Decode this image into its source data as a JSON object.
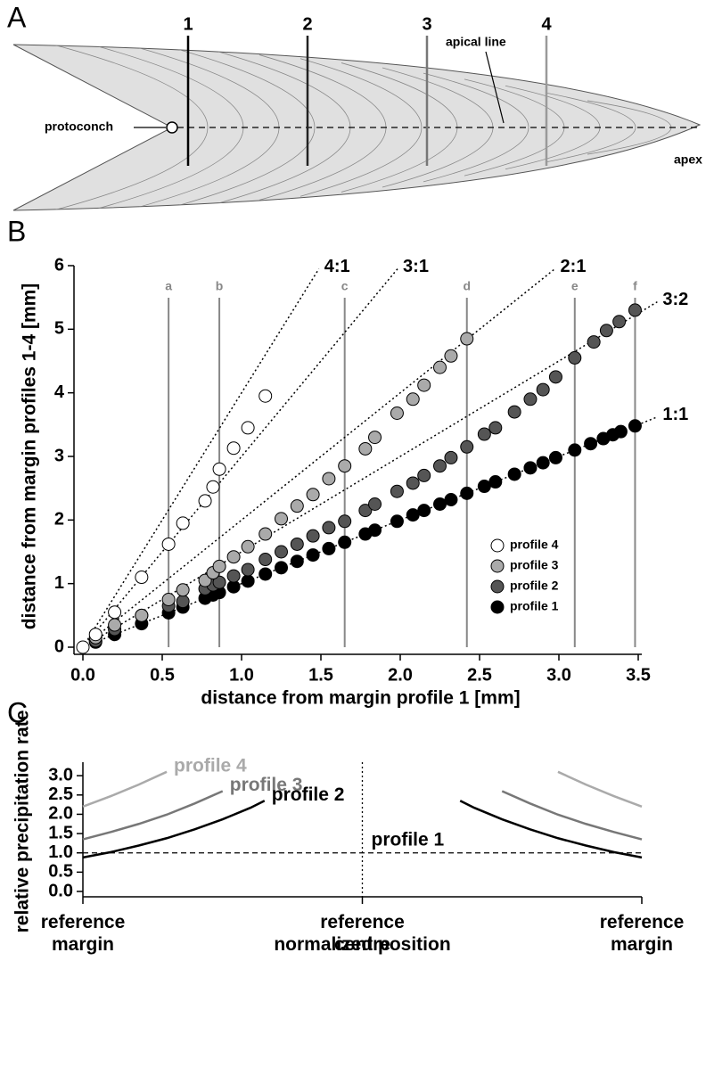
{
  "panel_a": {
    "letter": "A",
    "line_labels": [
      "1",
      "2",
      "3",
      "4"
    ],
    "protoconch": "protoconch",
    "apical_line": "apical line",
    "apex": "apex"
  },
  "chart_data": [
    {
      "type": "scatter",
      "panel": "B",
      "x_label": "distance from margin profile 1 [mm]",
      "y_label": "distance from margin profiles 1-4 [mm]",
      "xlim": [
        0,
        3.5
      ],
      "ylim": [
        0,
        6
      ],
      "xticks": [
        {
          "value": 0,
          "label": "0.0"
        },
        0.5,
        {
          "value": 1,
          "label": "1.0"
        },
        1.5,
        {
          "value": 2,
          "label": "2.0"
        },
        2.5,
        {
          "value": 3,
          "label": "3.0"
        },
        3.5
      ],
      "yticks": [
        0,
        1,
        2,
        3,
        4,
        5,
        6
      ],
      "legend": "lower right",
      "reference_lines": [
        {
          "label": "a",
          "x": 0.54
        },
        {
          "label": "b",
          "x": 0.86
        },
        {
          "label": "c",
          "x": 1.65
        },
        {
          "label": "d",
          "x": 2.42
        },
        {
          "label": "e",
          "x": 3.1
        },
        {
          "label": "f",
          "x": 3.48
        }
      ],
      "ratio_lines": [
        {
          "label": "4:1",
          "slope": 4
        },
        {
          "label": "3:1",
          "slope": 3
        },
        {
          "label": "2:1",
          "slope": 2
        },
        {
          "label": "3:2",
          "slope": 1.5
        },
        {
          "label": "1:1",
          "slope": 1
        }
      ],
      "series": [
        {
          "name": "profile 4",
          "color": "#ffffff",
          "x": [
            0,
            0.08,
            0.2,
            0.37,
            0.54,
            0.63,
            0.77,
            0.82,
            0.86,
            0.95,
            1.04,
            1.15
          ],
          "values": [
            0,
            0.2,
            0.55,
            1.1,
            1.62,
            1.95,
            2.3,
            2.52,
            2.8,
            3.13,
            3.45,
            3.95
          ]
        },
        {
          "name": "profile 3",
          "color": "#aaaaaa",
          "x": [
            0.08,
            0.2,
            0.37,
            0.54,
            0.63,
            0.77,
            0.82,
            0.86,
            0.95,
            1.04,
            1.15,
            1.25,
            1.35,
            1.45,
            1.55,
            1.65,
            1.78,
            1.84,
            1.98,
            2.08,
            2.15,
            2.25,
            2.32,
            2.42
          ],
          "values": [
            0.15,
            0.35,
            0.5,
            0.75,
            0.9,
            1.05,
            1.17,
            1.27,
            1.42,
            1.58,
            1.78,
            2.02,
            2.22,
            2.4,
            2.65,
            2.85,
            3.12,
            3.3,
            3.68,
            3.9,
            4.12,
            4.4,
            4.58,
            4.85
          ]
        },
        {
          "name": "profile 2",
          "color": "#555555",
          "x": [
            0.08,
            0.2,
            0.37,
            0.54,
            0.63,
            0.77,
            0.82,
            0.86,
            0.95,
            1.04,
            1.15,
            1.25,
            1.35,
            1.45,
            1.55,
            1.65,
            1.78,
            1.84,
            1.98,
            2.08,
            2.15,
            2.25,
            2.32,
            2.42,
            2.53,
            2.6,
            2.72,
            2.82,
            2.9,
            2.98,
            3.1,
            3.22,
            3.3,
            3.38,
            3.48
          ],
          "values": [
            0.1,
            0.28,
            0.5,
            0.65,
            0.72,
            0.92,
            0.98,
            1.02,
            1.12,
            1.22,
            1.38,
            1.5,
            1.62,
            1.75,
            1.88,
            1.98,
            2.15,
            2.25,
            2.45,
            2.58,
            2.7,
            2.85,
            2.98,
            3.15,
            3.35,
            3.45,
            3.7,
            3.9,
            4.05,
            4.25,
            4.55,
            4.8,
            4.98,
            5.12,
            5.3
          ]
        },
        {
          "name": "profile 1",
          "color": "#000000",
          "x": [
            0.08,
            0.2,
            0.37,
            0.54,
            0.63,
            0.77,
            0.82,
            0.86,
            0.95,
            1.04,
            1.15,
            1.25,
            1.35,
            1.45,
            1.55,
            1.65,
            1.78,
            1.84,
            1.98,
            2.08,
            2.15,
            2.25,
            2.32,
            2.42,
            2.53,
            2.6,
            2.72,
            2.82,
            2.9,
            2.98,
            3.1,
            3.2,
            3.28,
            3.34,
            3.39,
            3.48
          ],
          "values": [
            0.08,
            0.2,
            0.37,
            0.54,
            0.63,
            0.77,
            0.82,
            0.86,
            0.95,
            1.04,
            1.15,
            1.25,
            1.35,
            1.45,
            1.55,
            1.65,
            1.78,
            1.84,
            1.98,
            2.08,
            2.15,
            2.25,
            2.32,
            2.42,
            2.53,
            2.6,
            2.72,
            2.82,
            2.9,
            2.98,
            3.1,
            3.2,
            3.28,
            3.34,
            3.39,
            3.48
          ]
        }
      ]
    },
    {
      "type": "line",
      "panel": "C",
      "y_label": "relative precipitation rate",
      "x_label": "normalized position",
      "xlim": [
        0,
        1
      ],
      "ylim": [
        0,
        3.35
      ],
      "xticks": [
        {
          "value": 0,
          "label": "reference margin"
        },
        {
          "value": 0.5,
          "label": "reference centre"
        },
        {
          "value": 1,
          "label": "reference margin"
        }
      ],
      "yticks": [
        {
          "value": 0,
          "label": "0.0"
        },
        0.5,
        {
          "value": 1,
          "label": "1.0"
        },
        1.5,
        {
          "value": 2,
          "label": "2.0"
        },
        2.5,
        {
          "value": 3,
          "label": "3.0"
        }
      ],
      "vline": 0.5,
      "series": [
        {
          "name": "profile 4",
          "color": "#aaaaaa",
          "x": [
            0,
            0.05,
            0.1,
            0.15,
            null,
            0.85,
            0.9,
            0.95,
            1
          ],
          "values": [
            2.2,
            2.47,
            2.77,
            3.1,
            null,
            3.1,
            2.77,
            2.47,
            2.2
          ]
        },
        {
          "name": "profile 3",
          "color": "#777777",
          "x": [
            0,
            0.05,
            0.1,
            0.15,
            0.2,
            0.25,
            null,
            0.75,
            0.8,
            0.85,
            0.9,
            0.95,
            1
          ],
          "values": [
            1.35,
            1.54,
            1.75,
            1.99,
            2.28,
            2.6,
            null,
            2.6,
            2.28,
            1.99,
            1.75,
            1.54,
            1.35
          ]
        },
        {
          "name": "profile 2",
          "color": "#000000",
          "x": [
            0,
            0.05,
            0.1,
            0.15,
            0.2,
            0.25,
            0.3,
            0.325,
            null,
            0.675,
            0.7,
            0.75,
            0.8,
            0.85,
            0.9,
            0.95,
            1
          ],
          "values": [
            0.88,
            1.02,
            1.19,
            1.38,
            1.61,
            1.87,
            2.17,
            2.35,
            null,
            2.35,
            2.17,
            1.87,
            1.61,
            1.38,
            1.19,
            1.02,
            0.88
          ]
        },
        {
          "name": "profile 1",
          "color": "#000000",
          "dashed": true,
          "x": [
            0,
            1
          ],
          "values": [
            1,
            1
          ]
        }
      ]
    }
  ]
}
